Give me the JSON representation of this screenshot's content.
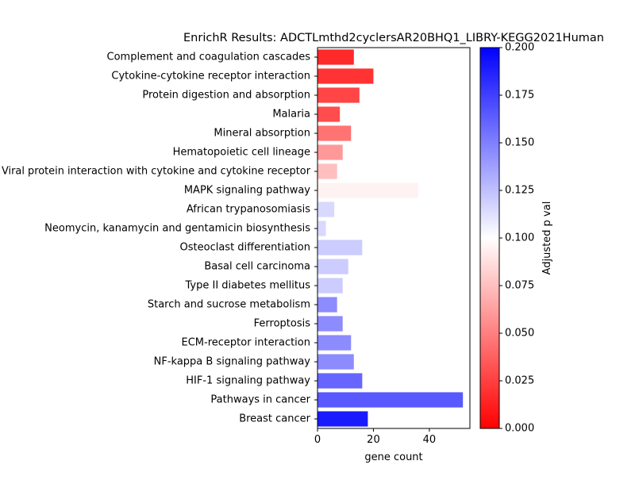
{
  "chart_data": {
    "type": "bar",
    "orientation": "horizontal",
    "title": "EnrichR Results: ADCTLmthd2cyclersAR20BHQ1_LIBRY-KEGG2021Human",
    "xlabel": "gene count",
    "ylabel": "",
    "xlim": [
      0,
      54.5
    ],
    "xticks": [
      0,
      20,
      40
    ],
    "grid": false,
    "categories": [
      "Complement and coagulation cascades",
      "Cytokine-cytokine receptor interaction",
      "Protein digestion and absorption",
      "Malaria",
      "Mineral absorption",
      "Hematopoietic cell lineage",
      "Viral protein interaction with cytokine and cytokine receptor",
      "MAPK signaling pathway",
      "African trypanosomiasis",
      "Neomycin, kanamycin and gentamicin biosynthesis",
      "Osteoclast differentiation",
      "Basal cell carcinoma",
      "Type II diabetes mellitus",
      "Starch and sucrose metabolism",
      "Ferroptosis",
      "ECM-receptor interaction",
      "NF-kappa B signaling pathway",
      "HIF-1 signaling pathway",
      "Pathways in cancer",
      "Breast cancer"
    ],
    "values": [
      13,
      20,
      15,
      8,
      12,
      9,
      7,
      36,
      6,
      3,
      16,
      11,
      9,
      7,
      9,
      12,
      13,
      16,
      52,
      18
    ],
    "adjusted_p": [
      0.016,
      0.02,
      0.027,
      0.03,
      0.045,
      0.06,
      0.075,
      0.095,
      0.115,
      0.115,
      0.12,
      0.12,
      0.12,
      0.145,
      0.145,
      0.145,
      0.145,
      0.16,
      0.165,
      0.19
    ],
    "colorbar": {
      "label": "Adjusted p val",
      "range": [
        0,
        0.2
      ],
      "ticks": [
        "0.000",
        "0.025",
        "0.050",
        "0.075",
        "0.100",
        "0.125",
        "0.150",
        "0.175",
        "0.200"
      ],
      "colors": [
        "#ff0000",
        "#ffffff",
        "#0000ff"
      ]
    }
  }
}
